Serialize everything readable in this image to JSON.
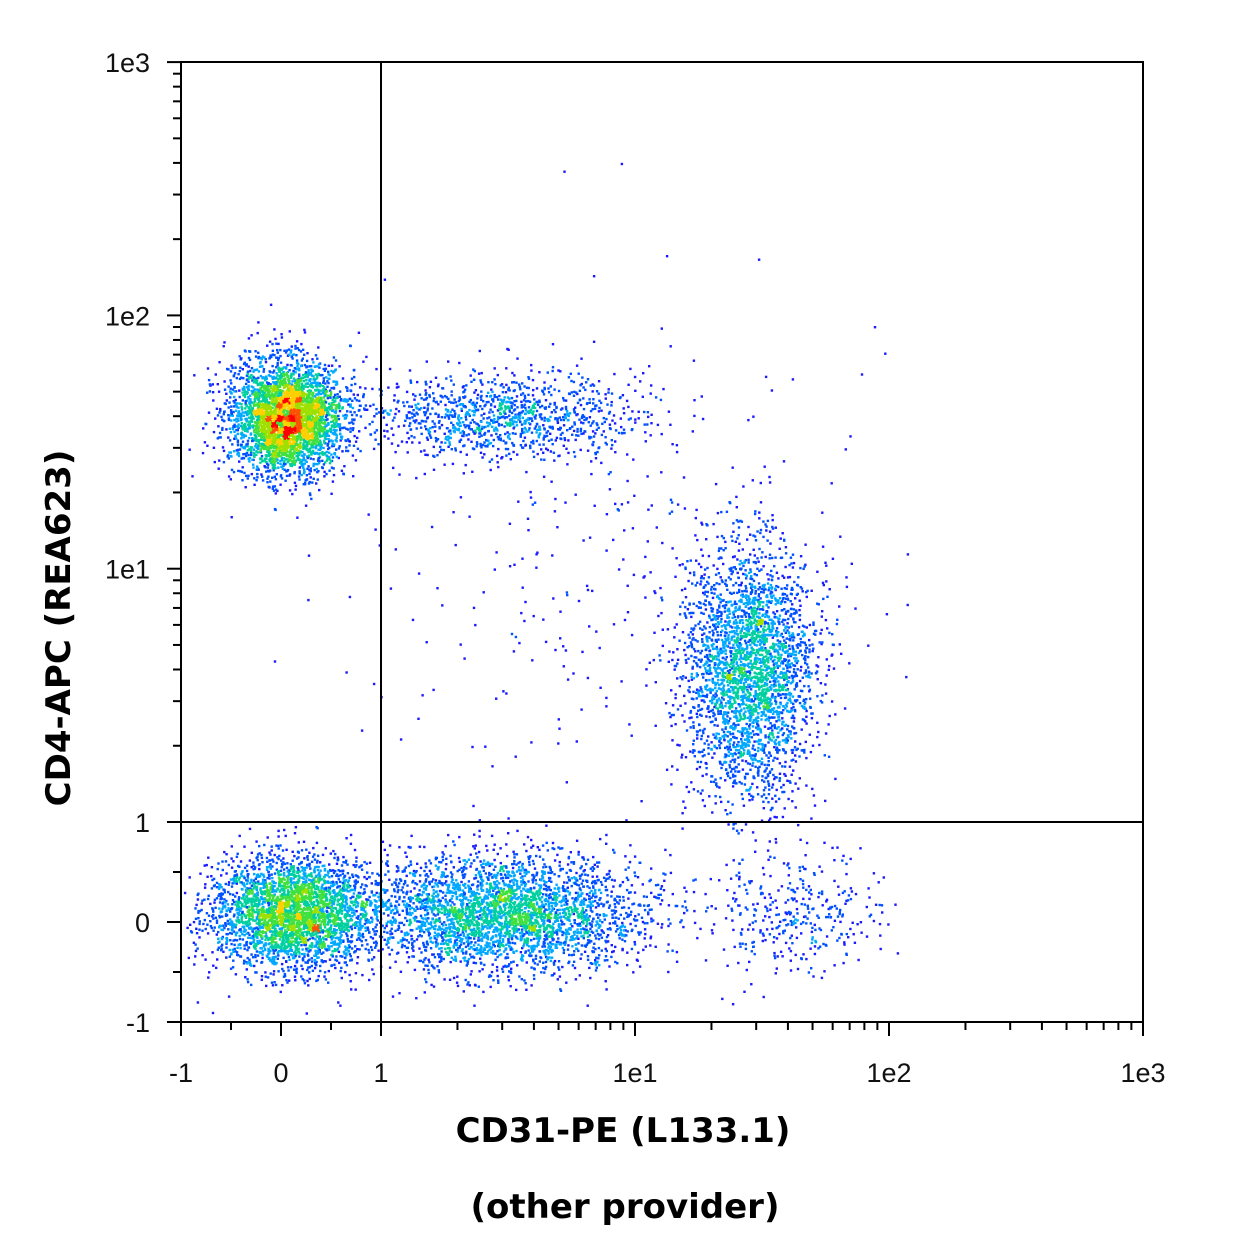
{
  "chart_data": {
    "type": "scatter",
    "style": "flow-cytometry density dot plot",
    "xlabel": "CD31-PE (L133.1)",
    "xlabel_line2": "(other provider)",
    "ylabel": "CD4-APC (REA623)",
    "x_ticks": [
      "-1",
      "0",
      "1",
      "1e1",
      "1e2",
      "1e3"
    ],
    "y_ticks": [
      "-1",
      "0",
      "1",
      "1e1",
      "1e2",
      "1e3"
    ],
    "x_scale": "biexponential (linear -1 to 1, log 1 to 1e3)",
    "y_scale": "biexponential (linear -1 to 1, log 1 to 1e3)",
    "xlim": [
      -1,
      1000
    ],
    "ylim": [
      -1,
      1000
    ],
    "quadrant_gate": {
      "x": 1,
      "y": 1
    },
    "density_colors": [
      "#1a1aff",
      "#0050ff",
      "#00a8ff",
      "#00d0a0",
      "#40e040",
      "#a0e000",
      "#ffd000",
      "#ff5000",
      "#ff0000"
    ],
    "populations": [
      {
        "x": 0.05,
        "y": 40,
        "events": 3600
      },
      {
        "x": 3,
        "y": 40,
        "events": 1100
      },
      {
        "x": 0.1,
        "y": 0.1,
        "events": 3200
      },
      {
        "x": 3,
        "y": 0.1,
        "events": 3400
      },
      {
        "x": 28,
        "y": 4,
        "events": 3000
      },
      {
        "x": 40,
        "y": 0.1,
        "events": 350
      },
      {
        "x": 8,
        "y": 10,
        "events": 300
      }
    ]
  }
}
